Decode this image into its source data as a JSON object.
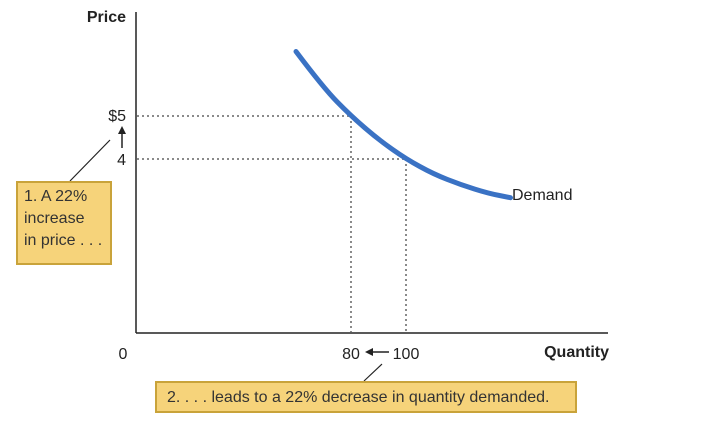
{
  "chart_data": {
    "type": "line",
    "xlabel": "Quantity",
    "ylabel": "Price",
    "series": [
      {
        "name": "Demand",
        "x": [
          60,
          70,
          80,
          90,
          100,
          110,
          120,
          130,
          138
        ],
        "y": [
          6.5,
          5.65,
          5.0,
          4.45,
          4.0,
          3.65,
          3.4,
          3.2,
          3.1
        ]
      }
    ],
    "reference_points": [
      {
        "price": 5,
        "quantity": 80
      },
      {
        "price": 4,
        "quantity": 100
      }
    ],
    "ytick_labels": {
      "price_high": "$5",
      "price_low": "4"
    },
    "xtick_labels": {
      "origin": "0",
      "q_low": "80",
      "q_high": "100"
    },
    "annotations": {
      "price_note": [
        "1. A 22%",
        "increase",
        "in price . . ."
      ],
      "quantity_note": "2. . . . leads to a 22% decrease in quantity demanded."
    },
    "colors": {
      "curve": "#3a72c4",
      "callout_fill": "#f6d37a",
      "callout_border": "#c9a33a"
    },
    "grid": false
  }
}
